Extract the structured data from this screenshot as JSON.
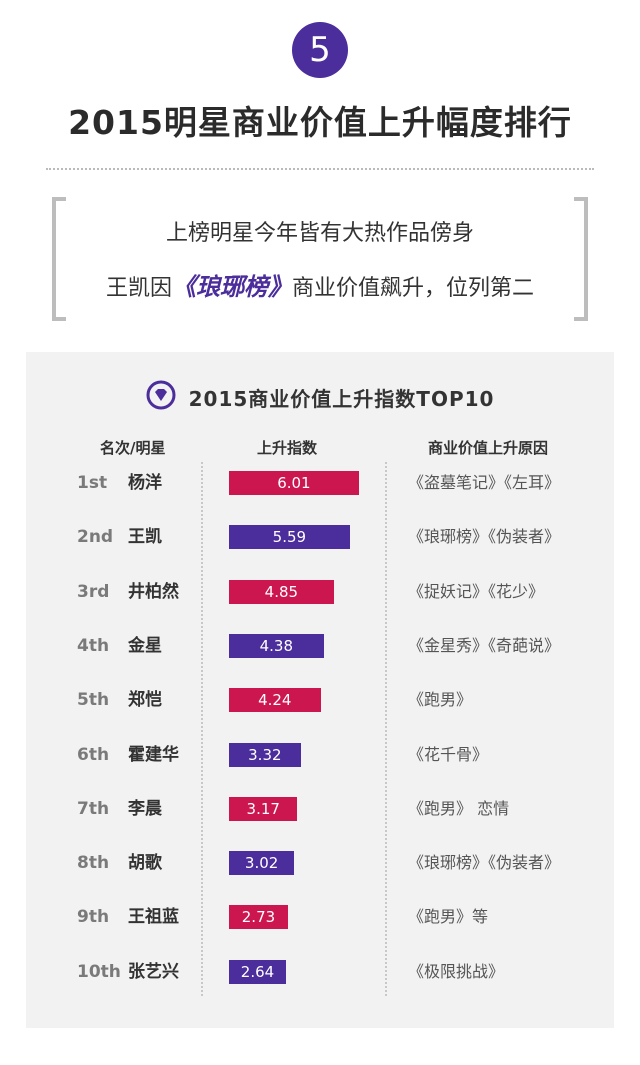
{
  "badge_number": "5",
  "title": "2015明星商业价值上升幅度排行",
  "subtitle": {
    "line1": "上榜明星今年皆有大热作品傍身",
    "line2_prefix": "王凯因",
    "line2_highlight": "《琅琊榜》",
    "line2_suffix": "商业价值飙升，位列第二"
  },
  "colors": {
    "pink": "#cc1650",
    "purple": "#4b2d9b"
  },
  "chart_data": {
    "type": "bar",
    "title": "2015商业价值上升指数TOP10",
    "columns": [
      "名次/明星",
      "上升指数",
      "商业价值上升原因"
    ],
    "ranks": [
      "1st",
      "2nd",
      "3rd",
      "4th",
      "5th",
      "6th",
      "7th",
      "8th",
      "9th",
      "10th"
    ],
    "categories": [
      "杨洋",
      "王凯",
      "井柏然",
      "金星",
      "郑恺",
      "霍建华",
      "李晨",
      "胡歌",
      "王祖蓝",
      "张艺兴"
    ],
    "values": [
      6.01,
      5.59,
      4.85,
      4.38,
      4.24,
      3.32,
      3.17,
      3.02,
      2.73,
      2.64
    ],
    "value_labels": [
      "6.01",
      "5.59",
      "4.85",
      "4.38",
      "4.24",
      "3.32",
      "3.17",
      "3.02",
      "2.73",
      "2.64"
    ],
    "bar_colors": [
      "pink",
      "purple",
      "pink",
      "purple",
      "pink",
      "purple",
      "pink",
      "purple",
      "pink",
      "purple"
    ],
    "reasons": [
      "《盗墓笔记》《左耳》",
      "《琅琊榜》《伪装者》",
      "《捉妖记》《花少》",
      "《金星秀》《奇葩说》",
      "《跑男》",
      "《花千骨》",
      "《跑男》 恋情",
      "《琅琊榜》《伪装者》",
      "《跑男》等",
      "《极限挑战》"
    ]
  }
}
